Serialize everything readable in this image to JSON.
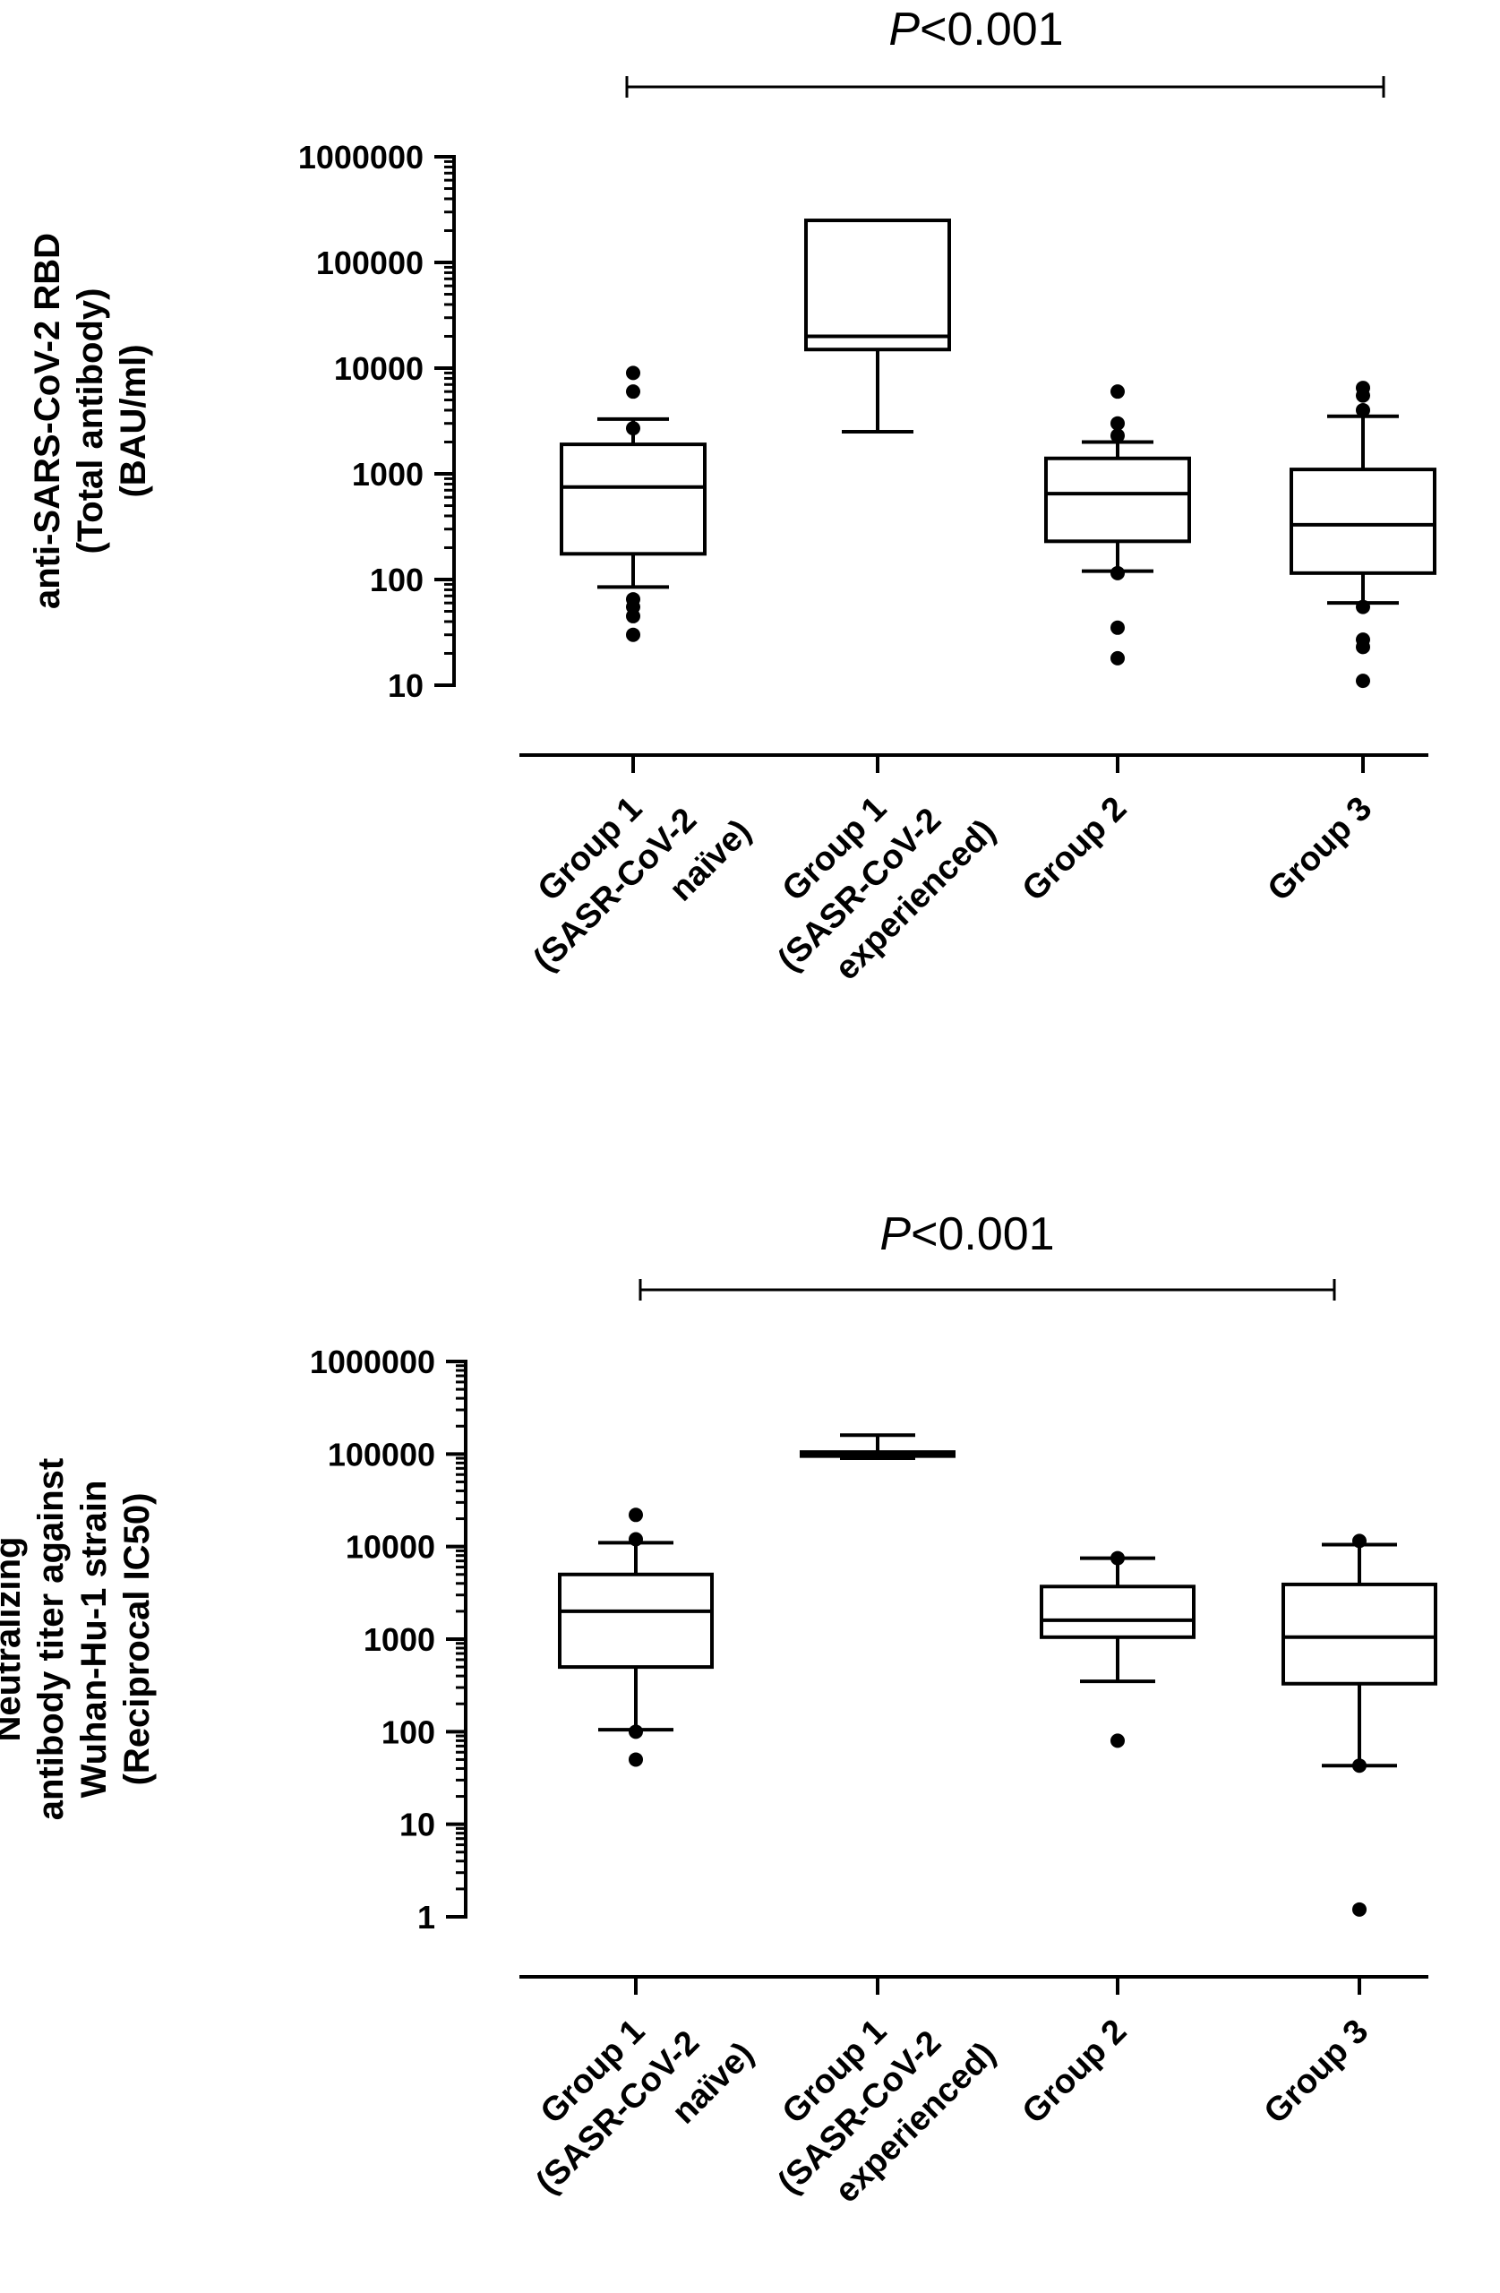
{
  "chart_data": [
    {
      "type": "box",
      "ylabel_lines": [
        "anti-SARS-CoV-2 RBD",
        "(Total antibody)",
        "(BAU/ml)"
      ],
      "yscale": "log",
      "ylim": [
        10,
        1000000
      ],
      "yticks": [
        10,
        100,
        1000,
        10000,
        100000,
        1000000
      ],
      "ytick_labels": [
        "10",
        "100",
        "1000",
        "10000",
        "100000",
        "1000000"
      ],
      "categories": [
        [
          "Group 1",
          "(SASR-CoV-2",
          "naïve)"
        ],
        [
          "Group 1",
          "(SASR-CoV-2",
          "experienced)"
        ],
        [
          "Group 2"
        ],
        [
          "Group 3"
        ]
      ],
      "boxes": [
        {
          "whisker_low": 85,
          "q1": 175,
          "median": 750,
          "q3": 1900,
          "whisker_high": 3300,
          "outliers": [
            9000,
            6000,
            2700,
            65,
            55,
            45,
            30
          ]
        },
        {
          "whisker_low": 2500,
          "q1": 15000,
          "median": 20000,
          "q3": 250000,
          "whisker_high": 250000,
          "outliers": []
        },
        {
          "whisker_low": 120,
          "q1": 230,
          "median": 650,
          "q3": 1400,
          "whisker_high": 2000,
          "outliers": [
            6000,
            3000,
            2300,
            115,
            35,
            18
          ]
        },
        {
          "whisker_low": 60,
          "q1": 115,
          "median": 330,
          "q3": 1100,
          "whisker_high": 3500,
          "outliers": [
            6500,
            5500,
            4000,
            55,
            27,
            23,
            11
          ]
        }
      ],
      "significance": {
        "label_italic": "P",
        "label_rest": "<0.001",
        "from_category": 0,
        "to_category": 3
      }
    },
    {
      "type": "box",
      "ylabel_lines": [
        "Neutralizing",
        "antibody titer against",
        "Wuhan-Hu-1 strain",
        "(Reciprocal IC50)"
      ],
      "yscale": "log",
      "ylim": [
        1,
        1000000
      ],
      "yticks": [
        1,
        10,
        100,
        1000,
        10000,
        100000,
        1000000
      ],
      "ytick_labels": [
        "1",
        "10",
        "100",
        "1000",
        "10000",
        "100000",
        "1000000"
      ],
      "categories": [
        [
          "Group 1",
          "(SASR-CoV-2",
          "naïve)"
        ],
        [
          "Group 1",
          "(SASR-CoV-2",
          "experienced)"
        ],
        [
          "Group 2"
        ],
        [
          "Group 3"
        ]
      ],
      "boxes": [
        {
          "whisker_low": 105,
          "q1": 500,
          "median": 2000,
          "q3": 5000,
          "whisker_high": 11000,
          "outliers": [
            22000,
            12000,
            100,
            50
          ]
        },
        {
          "whisker_low": 90000,
          "q1": 95000,
          "median": 100000,
          "q3": 105000,
          "whisker_high": 160000,
          "outliers": []
        },
        {
          "whisker_low": 350,
          "q1": 1050,
          "median": 1600,
          "q3": 3700,
          "whisker_high": 7500,
          "outliers": [
            7500,
            80
          ]
        },
        {
          "whisker_low": 43,
          "q1": 330,
          "median": 1050,
          "q3": 3900,
          "whisker_high": 10500,
          "outliers": [
            11500,
            43,
            1.2
          ]
        }
      ],
      "significance": {
        "label_italic": "P",
        "label_rest": "<0.001",
        "from_category": 0,
        "to_category": 3
      }
    }
  ]
}
